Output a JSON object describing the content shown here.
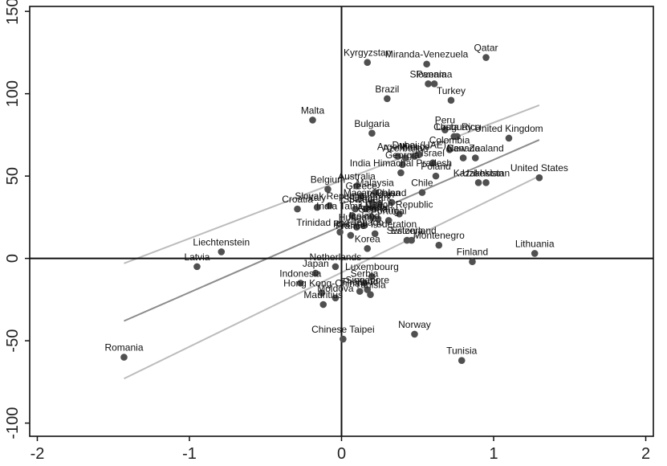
{
  "chart_data": {
    "type": "scatter",
    "title": "",
    "xlabel": "",
    "ylabel": "",
    "xlim": [
      -2.05,
      2.05
    ],
    "ylim": [
      -108,
      153
    ],
    "x_ticks": [
      -2,
      -1,
      0,
      1,
      2
    ],
    "y_ticks": [
      -100,
      -50,
      0,
      50,
      100,
      150
    ],
    "tick_labels_x": [
      "-2",
      "-1",
      "0",
      "1",
      "2"
    ],
    "tick_labels_y": [
      "-100",
      "-50",
      "0",
      "50",
      "100",
      "150"
    ],
    "grid": false,
    "reference_lines": {
      "x": 0,
      "y": 0
    },
    "colors": {
      "point": "#505050",
      "fit_line": "#8c8c8c",
      "ci_line": "#bcbcbc",
      "axis": "#111111"
    },
    "fit_line": {
      "x": [
        -1.43,
        1.3
      ],
      "y": [
        -38,
        72
      ]
    },
    "ci_upper": {
      "x": [
        -1.43,
        1.3
      ],
      "y": [
        -3,
        93
      ]
    },
    "ci_lower": {
      "x": [
        -1.43,
        1.3
      ],
      "y": [
        -73,
        50
      ]
    },
    "points": [
      {
        "label": "Qatar",
        "x": 0.95,
        "y": 122
      },
      {
        "label": "Kyrgyzstan",
        "x": 0.17,
        "y": 119
      },
      {
        "label": "Miranda-Venezuela",
        "x": 0.56,
        "y": 118
      },
      {
        "label": "Slovenia",
        "x": 0.57,
        "y": 106
      },
      {
        "label": "Panama",
        "x": 0.61,
        "y": 106
      },
      {
        "label": "Turkey",
        "x": 0.72,
        "y": 96
      },
      {
        "label": "Brazil",
        "x": 0.3,
        "y": 97
      },
      {
        "label": "Malta",
        "x": -0.19,
        "y": 84
      },
      {
        "label": "Bulgaria",
        "x": 0.2,
        "y": 76
      },
      {
        "label": "Peru",
        "x": 0.68,
        "y": 78
      },
      {
        "label": "Costa Rica",
        "x": 0.76,
        "y": 74
      },
      {
        "label": "Uruguay",
        "x": 0.74,
        "y": 74
      },
      {
        "label": "United Kingdom",
        "x": 1.1,
        "y": 73
      },
      {
        "label": "Colombia",
        "x": 0.71,
        "y": 66
      },
      {
        "label": "Dubai (UAE)",
        "x": 0.51,
        "y": 63
      },
      {
        "label": "Argentina",
        "x": 0.37,
        "y": 62
      },
      {
        "label": "Azerbaijan",
        "x": 0.42,
        "y": 61
      },
      {
        "label": "Mexico",
        "x": 0.48,
        "y": 62
      },
      {
        "label": "New Zealand",
        "x": 0.88,
        "y": 61
      },
      {
        "label": "Canada",
        "x": 0.8,
        "y": 61
      },
      {
        "label": "Georgia",
        "x": 0.4,
        "y": 57
      },
      {
        "label": "Israel",
        "x": 0.6,
        "y": 58
      },
      {
        "label": "India Himachal Pradesh",
        "x": 0.39,
        "y": 52
      },
      {
        "label": "Poland",
        "x": 0.62,
        "y": 50
      },
      {
        "label": "Kazakhstan",
        "x": 0.9,
        "y": 46
      },
      {
        "label": "Uzbekistan",
        "x": 0.95,
        "y": 46
      },
      {
        "label": "United States",
        "x": 1.3,
        "y": 49
      },
      {
        "label": "Australia",
        "x": 0.1,
        "y": 44
      },
      {
        "label": "Chile",
        "x": 0.53,
        "y": 40
      },
      {
        "label": "Belgium",
        "x": -0.09,
        "y": 42
      },
      {
        "label": "Malaysia",
        "x": 0.22,
        "y": 40
      },
      {
        "label": "Greece",
        "x": 0.13,
        "y": 38
      },
      {
        "label": "Macao-China",
        "x": 0.2,
        "y": 34
      },
      {
        "label": "Ireland",
        "x": 0.33,
        "y": 34
      },
      {
        "label": "Jordan",
        "x": 0.25,
        "y": 33
      },
      {
        "label": "Croatia",
        "x": -0.29,
        "y": 30
      },
      {
        "label": "Italy",
        "x": -0.16,
        "y": 31
      },
      {
        "label": "Slovak Republic",
        "x": -0.08,
        "y": 32
      },
      {
        "label": "Spain",
        "x": 0.09,
        "y": 30
      },
      {
        "label": "Sweden",
        "x": 0.16,
        "y": 30
      },
      {
        "label": "Denmark",
        "x": 0.2,
        "y": 31
      },
      {
        "label": "Czech Republic",
        "x": 0.38,
        "y": 27
      },
      {
        "label": "India Tamil Nadu",
        "x": 0.07,
        "y": 26
      },
      {
        "label": "Austria",
        "x": 0.2,
        "y": 25
      },
      {
        "label": "Germany",
        "x": 0.24,
        "y": 24
      },
      {
        "label": "Portugal",
        "x": 0.31,
        "y": 23
      },
      {
        "label": "Hungary",
        "x": 0.1,
        "y": 19
      },
      {
        "label": "Iceland",
        "x": 0.15,
        "y": 20
      },
      {
        "label": "Trinidad and Tobago",
        "x": -0.01,
        "y": 16
      },
      {
        "label": "France",
        "x": 0.06,
        "y": 14
      },
      {
        "label": "Russian Federation",
        "x": 0.22,
        "y": 15
      },
      {
        "label": "Estonia",
        "x": 0.43,
        "y": 11
      },
      {
        "label": "Switzerland",
        "x": 0.46,
        "y": 11
      },
      {
        "label": "Korea",
        "x": 0.17,
        "y": 6
      },
      {
        "label": "Montenegro",
        "x": 0.64,
        "y": 8
      },
      {
        "label": "Liechtenstein",
        "x": -0.79,
        "y": 4
      },
      {
        "label": "Latvia",
        "x": -0.95,
        "y": -5
      },
      {
        "label": "Finland",
        "x": 0.86,
        "y": -2
      },
      {
        "label": "Lithuania",
        "x": 1.27,
        "y": 3
      },
      {
        "label": "Netherlands",
        "x": -0.04,
        "y": -5
      },
      {
        "label": "Japan",
        "x": -0.17,
        "y": -9
      },
      {
        "label": "Luxembourg",
        "x": 0.2,
        "y": -11
      },
      {
        "label": "Serbia",
        "x": 0.15,
        "y": -15
      },
      {
        "label": "Indonesia",
        "x": -0.27,
        "y": -15
      },
      {
        "label": "Thailand",
        "x": 0.12,
        "y": -20
      },
      {
        "label": "Singapore",
        "x": 0.17,
        "y": -19
      },
      {
        "label": "Tunisia",
        "x": 0.19,
        "y": -22
      },
      {
        "label": "Hong Kong-China",
        "x": -0.13,
        "y": -21
      },
      {
        "label": "Mauritius",
        "x": -0.12,
        "y": -28
      },
      {
        "label": "Moldova",
        "x": -0.04,
        "y": -24
      },
      {
        "label": "Chinese Taipei",
        "x": 0.01,
        "y": -49
      },
      {
        "label": "Norway",
        "x": 0.48,
        "y": -46
      },
      {
        "label": "Tunisia",
        "x": 0.79,
        "y": -62
      },
      {
        "label": "Romania",
        "x": -1.43,
        "y": -60
      }
    ]
  }
}
